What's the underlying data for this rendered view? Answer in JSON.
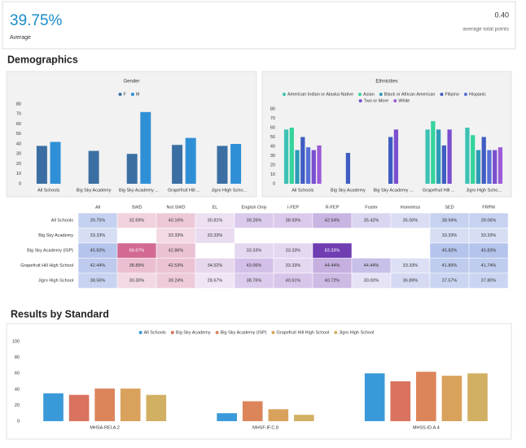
{
  "header": {
    "kpi_value": "39.75%",
    "kpi_label": "Average",
    "points_value": "0.40",
    "points_label": "average total points"
  },
  "sections": {
    "demographics": "Demographics",
    "results": "Results by Standard"
  },
  "chart_data": [
    {
      "type": "bar",
      "title": "Gender",
      "categories": [
        "All Schools",
        "Big Sky Academy",
        "Big Sky Academy ...",
        "Grapefruit Hill ...",
        "Jigro High Scho..."
      ],
      "series": [
        {
          "name": "F",
          "color": "#3b6fa3",
          "values": [
            38,
            33,
            30,
            39,
            38
          ]
        },
        {
          "name": "M",
          "color": "#2f8fd6",
          "values": [
            42,
            null,
            72,
            46,
            40
          ]
        }
      ],
      "ylim": [
        0,
        80
      ],
      "yticks": [
        0,
        10,
        20,
        30,
        40,
        50,
        60,
        70,
        80
      ],
      "grid": false,
      "legend": "top"
    },
    {
      "type": "bar",
      "title": "Ethnicities",
      "categories": [
        "All Schools",
        "Big Sky Academy",
        "Big Sky Academy ...",
        "Grapefruit Hill ...",
        "Jigro High Scho..."
      ],
      "series": [
        {
          "name": "American Indian or Alaska Native",
          "color": "#3cc2b4",
          "values": [
            58,
            null,
            null,
            58,
            60
          ]
        },
        {
          "name": "Asian",
          "color": "#34d49c",
          "values": [
            60,
            null,
            null,
            67,
            52
          ]
        },
        {
          "name": "Black or African American",
          "color": "#2e9ab8",
          "values": [
            36,
            null,
            null,
            58,
            36
          ]
        },
        {
          "name": "Filipino",
          "color": "#3f5cc2",
          "values": [
            50,
            33,
            50,
            41,
            50
          ]
        },
        {
          "name": "Hispanic",
          "color": "#5670d8",
          "values": [
            39,
            null,
            null,
            null,
            36
          ]
        },
        {
          "name": "Two or More",
          "color": "#7a4fd0",
          "values": [
            36,
            null,
            58,
            58,
            36
          ]
        },
        {
          "name": "White",
          "color": "#9c5cd8",
          "values": [
            41,
            null,
            null,
            null,
            39
          ]
        }
      ],
      "ylim": [
        0,
        80
      ],
      "yticks": [
        0,
        10,
        20,
        30,
        40,
        50,
        60,
        70,
        80
      ],
      "grid": false,
      "legend": "top"
    },
    {
      "type": "bar",
      "categories": [
        "MHSA-REI.A.2",
        "MHSF-IF.C.8",
        "MHSS-ID.A.4"
      ],
      "series": [
        {
          "name": "All Schools",
          "color": "#3a9ad9",
          "values": [
            35,
            10,
            60
          ]
        },
        {
          "name": "Big Sky Academy",
          "color": "#d9725f",
          "values": [
            33,
            null,
            50
          ]
        },
        {
          "name": "Big Sky Academy (ISP)",
          "color": "#dc855b",
          "values": [
            41,
            25,
            62
          ]
        },
        {
          "name": "Grapefruit Hill High School",
          "color": "#d9a25c",
          "values": [
            41,
            15,
            57
          ]
        },
        {
          "name": "Jigro High School",
          "color": "#d2b063",
          "values": [
            33,
            8,
            60
          ]
        }
      ],
      "ylim": [
        0,
        100
      ],
      "yticks": [
        0,
        20,
        40,
        60,
        80,
        100
      ],
      "grid": false,
      "legend": "top"
    }
  ],
  "table": {
    "columns": [
      "All",
      "SWD",
      "Not SWD",
      "EL",
      "English Only",
      "I-FEP",
      "R-FEP",
      "Foster",
      "Homeless",
      "SED",
      "FRPM"
    ],
    "column_colors": [
      "#4a6fd0",
      "#c0306a",
      "#c85a8a",
      "#a060b8",
      "#8a55c0",
      "#8a55c0",
      "#6a35b0",
      "#6f62c8",
      "#6a78d0",
      "#4a6fd0",
      "#4a6fd0"
    ],
    "rows": [
      {
        "label": "All Schools",
        "cells": [
          "39.75%",
          "32.69%",
          "40.16%",
          "30.81%",
          "39.26%",
          "38.93%",
          "42.54%",
          "35.42%",
          "35.00%",
          "38.94%",
          "39.06%"
        ]
      },
      {
        "label": "Big Sky Academy",
        "cells": [
          "33.33%",
          null,
          "33.33%",
          "33.33%",
          null,
          null,
          null,
          null,
          null,
          "33.33%",
          "33.33%"
        ]
      },
      {
        "label": "Big Sky Academy (ISP)",
        "cells": [
          "45.83%",
          "66.67%",
          "42.86%",
          null,
          "33.33%",
          "33.33%",
          "83.33%",
          null,
          null,
          "45.83%",
          "45.83%"
        ]
      },
      {
        "label": "Grapefruit Hill High School",
        "cells": [
          "42.44%",
          "38.89%",
          "42.53%",
          "34.52%",
          "43.06%",
          "33.33%",
          "44.44%",
          "44.44%",
          "33.33%",
          "41.89%",
          "41.74%"
        ]
      },
      {
        "label": "Jigro High School",
        "cells": [
          "38.56%",
          "30.30%",
          "39.24%",
          "28.67%",
          "38.76%",
          "40.61%",
          "40.72%",
          "30.00%",
          "36.89%",
          "37.57%",
          "37.80%"
        ]
      }
    ]
  }
}
